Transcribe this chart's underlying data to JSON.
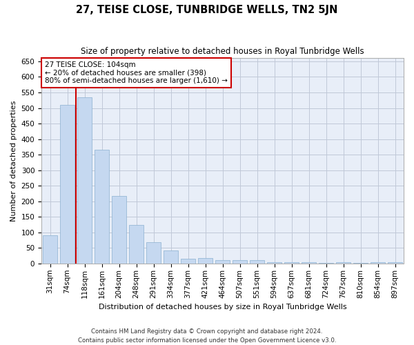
{
  "title": "27, TEISE CLOSE, TUNBRIDGE WELLS, TN2 5JN",
  "subtitle": "Size of property relative to detached houses in Royal Tunbridge Wells",
  "xlabel": "Distribution of detached houses by size in Royal Tunbridge Wells",
  "ylabel": "Number of detached properties",
  "footer1": "Contains HM Land Registry data © Crown copyright and database right 2024.",
  "footer2": "Contains public sector information licensed under the Open Government Licence v3.0.",
  "annotation_title": "27 TEISE CLOSE: 104sqm",
  "annotation_line1": "← 20% of detached houses are smaller (398)",
  "annotation_line2": "80% of semi-detached houses are larger (1,610) →",
  "vline_color": "#cc0000",
  "vline_x": 1.5,
  "categories": [
    "31sqm",
    "74sqm",
    "118sqm",
    "161sqm",
    "204sqm",
    "248sqm",
    "291sqm",
    "334sqm",
    "377sqm",
    "421sqm",
    "464sqm",
    "507sqm",
    "551sqm",
    "594sqm",
    "637sqm",
    "681sqm",
    "724sqm",
    "767sqm",
    "810sqm",
    "854sqm",
    "897sqm"
  ],
  "values": [
    90,
    510,
    535,
    365,
    218,
    125,
    68,
    42,
    15,
    18,
    10,
    10,
    10,
    5,
    5,
    5,
    3,
    5,
    3,
    5,
    5
  ],
  "ylim": [
    0,
    660
  ],
  "yticks": [
    0,
    50,
    100,
    150,
    200,
    250,
    300,
    350,
    400,
    450,
    500,
    550,
    600,
    650
  ],
  "bar_color": "#c5d8f0",
  "bar_edge_color": "#8ab0d0",
  "grid_color": "#c0c8d8",
  "background_color": "#e8eef8",
  "figsize": [
    6.0,
    5.0
  ],
  "dpi": 100
}
